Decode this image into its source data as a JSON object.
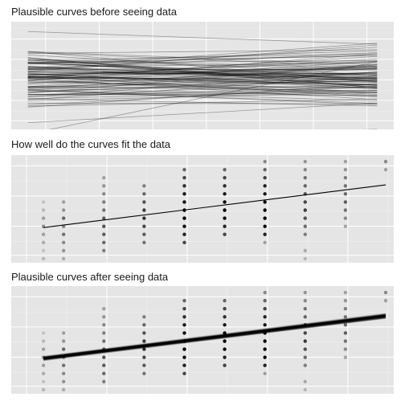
{
  "colors": {
    "panel_background": "#e5e5e5",
    "grid_major": "#ffffff",
    "grid_minor": "#f2f2f2",
    "line": "#000000"
  },
  "chart_data": [
    {
      "type": "line",
      "title": "Plausible curves before seeing data",
      "xlabel": "",
      "ylabel": "",
      "grid": true,
      "ticks_visible": false,
      "xlim": [
        -0.6,
        6.3
      ],
      "ylim": [
        -1.05,
        1.1
      ],
      "x_range": [
        -0.3,
        6.0
      ],
      "n_curves": 100,
      "curve_intercept_mean": 0.0,
      "curve_intercept_sd": 0.28,
      "curve_slope_mean": 0.0,
      "curve_slope_sd": 0.055,
      "extreme_curve": {
        "intercept": -0.42,
        "slope": 0.23
      }
    },
    {
      "type": "scatter",
      "title": "How well do the curves fit the data",
      "xlabel": "",
      "ylabel": "",
      "grid": true,
      "ticks_visible": false,
      "xlim": [
        -0.8,
        8.7
      ],
      "ylim": [
        -0.5,
        12.8
      ],
      "x": [
        0,
        0.5,
        1.5,
        2.5,
        3.5,
        4.5,
        5.5,
        6.5,
        7.5,
        8.5
      ],
      "point_counts": [
        {
          "x": 0,
          "y": [
            0,
            1,
            2,
            3,
            4,
            5,
            6,
            7
          ],
          "alpha": [
            0.2,
            0.15,
            0.25,
            0.3,
            0.4,
            0.3,
            0.2,
            0.15
          ]
        },
        {
          "x": 0.5,
          "y": [
            0,
            1,
            2,
            3,
            4,
            5,
            6,
            7
          ],
          "alpha": [
            0.25,
            0.35,
            0.4,
            0.5,
            0.45,
            0.55,
            0.35,
            0.3
          ]
        },
        {
          "x": 1.5,
          "y": [
            1,
            2,
            3,
            4,
            5,
            6,
            7,
            8,
            9,
            10
          ],
          "alpha": [
            0.45,
            0.55,
            0.6,
            0.65,
            0.6,
            0.5,
            0.45,
            0.4,
            0.35,
            0.3
          ]
        },
        {
          "x": 2.5,
          "y": [
            2,
            3,
            4,
            5,
            6,
            7,
            8,
            9
          ],
          "alpha": [
            0.5,
            0.6,
            0.7,
            0.8,
            0.75,
            0.65,
            0.55,
            0.45
          ]
        },
        {
          "x": 3.5,
          "y": [
            2,
            3,
            4,
            5,
            6,
            7,
            8,
            9,
            10,
            11
          ],
          "alpha": [
            0.7,
            0.85,
            0.95,
            1,
            1,
            0.95,
            0.9,
            0.8,
            0.7,
            0.55
          ]
        },
        {
          "x": 4.5,
          "y": [
            3,
            4,
            5,
            6,
            7,
            8,
            9,
            10,
            11
          ],
          "alpha": [
            0.7,
            0.85,
            0.95,
            1,
            1,
            0.9,
            0.8,
            0.7,
            0.55
          ]
        },
        {
          "x": 5.5,
          "y": [
            2,
            3,
            4,
            5,
            6,
            7,
            8,
            9,
            10,
            11,
            12
          ],
          "alpha": [
            0.3,
            0.85,
            0.95,
            1,
            1,
            0.95,
            0.9,
            0.85,
            0.7,
            0.55,
            0.4
          ]
        },
        {
          "x": 6.5,
          "y": [
            0,
            1,
            3,
            4,
            5,
            6,
            7,
            8,
            9,
            10,
            11,
            12
          ],
          "alpha": [
            0.2,
            0.25,
            0.45,
            0.55,
            0.65,
            0.75,
            0.7,
            0.65,
            0.55,
            0.5,
            0.4,
            0.35
          ]
        },
        {
          "x": 7.5,
          "y": [
            4,
            5,
            6,
            7,
            8,
            9,
            10,
            11,
            12
          ],
          "alpha": [
            0.3,
            0.4,
            0.5,
            0.6,
            0.55,
            0.5,
            0.45,
            0.35,
            0.3
          ]
        },
        {
          "x": 8.5,
          "y": [
            11,
            12
          ],
          "alpha": [
            0.3,
            0.4
          ]
        }
      ],
      "fit_line": {
        "intercept": 3.85,
        "slope": 0.62,
        "x_range": [
          0,
          8.5
        ]
      }
    },
    {
      "type": "scatter",
      "title": "Plausible curves after seeing data",
      "xlabel": "",
      "ylabel": "",
      "grid": true,
      "ticks_visible": false,
      "xlim": [
        -0.8,
        8.7
      ],
      "ylim": [
        -0.5,
        12.8
      ],
      "n_curves": 100,
      "posterior_curve_intercept_mean": 3.85,
      "posterior_curve_intercept_sd": 0.18,
      "posterior_curve_slope_mean": 0.62,
      "posterior_curve_slope_sd": 0.03
    }
  ]
}
